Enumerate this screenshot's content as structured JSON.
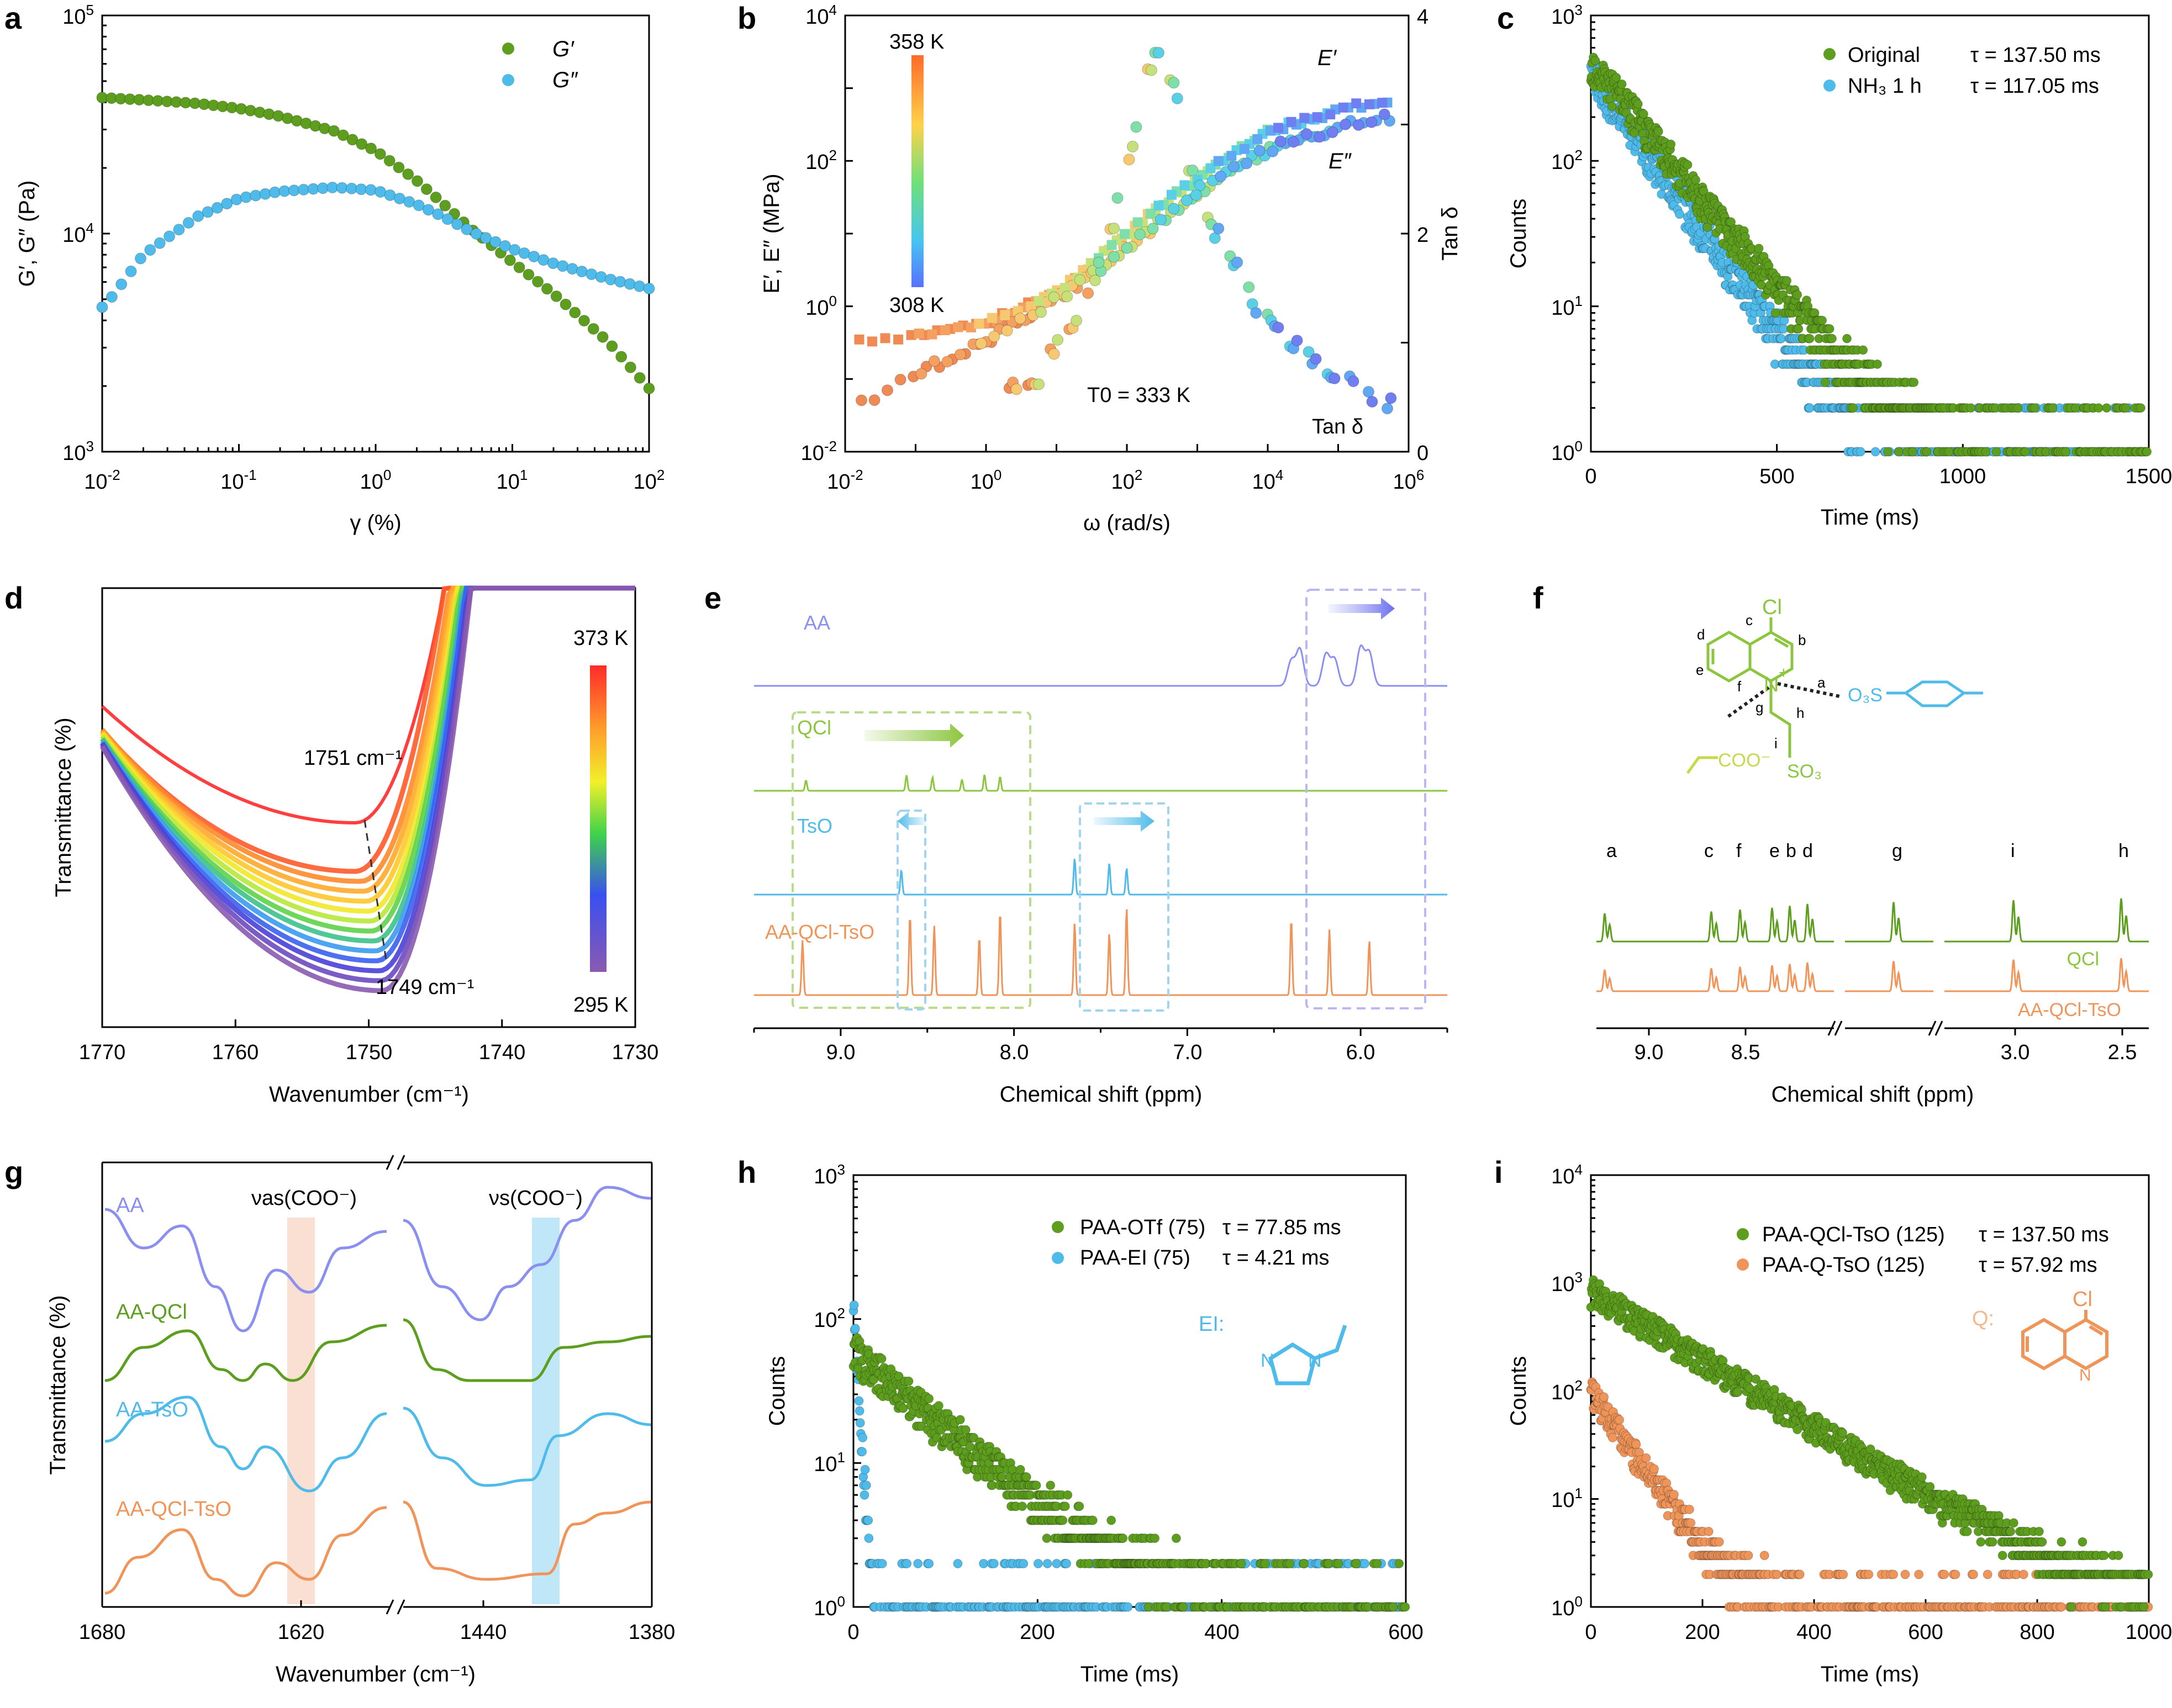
{
  "figure": {
    "panel_labels": [
      "a",
      "b",
      "c",
      "d",
      "e",
      "f",
      "g",
      "h",
      "i"
    ],
    "colors": {
      "green": "#5e9e1e",
      "blue": "#4fbbea",
      "orange": "#f0955a",
      "lav": "#8a8ff0",
      "lightgreen": "#8cc63f",
      "pink": "#f6c9b6",
      "sky": "#a9dff5"
    }
  },
  "chart_data": [
    {
      "panel": "a",
      "type": "scatter",
      "xscale": "log",
      "yscale": "log",
      "xlim": [
        0.01,
        100
      ],
      "ylim": [
        1000,
        100000
      ],
      "xticks": [
        "10^-2",
        "10^-1",
        "10^0",
        "10^1",
        "10^2"
      ],
      "yticks": [
        "10^3",
        "10^4",
        "10^5"
      ],
      "xlabel": "γ (%)",
      "ylabel": "G′, G″ (Pa)",
      "series": [
        {
          "name": "G′",
          "color": "#5e9e1e",
          "x": [
            0.01,
            0.02,
            0.05,
            0.1,
            0.2,
            0.5,
            1,
            2,
            3,
            5,
            10,
            20,
            50,
            100
          ],
          "y": [
            42000,
            41000,
            39500,
            37500,
            34500,
            29500,
            24000,
            17500,
            14000,
            10500,
            7400,
            5300,
            3200,
            1950
          ]
        },
        {
          "name": "G″",
          "color": "#4fbbea",
          "x": [
            0.01,
            0.012,
            0.02,
            0.05,
            0.1,
            0.2,
            0.5,
            1,
            2,
            3,
            5,
            10,
            20,
            50,
            100
          ],
          "y": [
            4600,
            5200,
            8000,
            12000,
            14500,
            15600,
            16300,
            15800,
            13600,
            12100,
            10200,
            8500,
            7300,
            6200,
            5600
          ]
        }
      ]
    },
    {
      "panel": "b",
      "type": "scatter",
      "xscale": "log",
      "yscale": "log",
      "xlim": [
        0.01,
        1000000
      ],
      "ylim": [
        0.01,
        10000
      ],
      "y2lim": [
        0,
        4
      ],
      "xticks": [
        "10^-2",
        "10^0",
        "10^2",
        "10^4",
        "10^6"
      ],
      "yticks": [
        "10^-2",
        "10^0",
        "10^2",
        "10^4"
      ],
      "y2ticks": [
        "0",
        "2",
        "4"
      ],
      "xlabel": "ω (rad/s)",
      "ylabel": "E′, E″ (MPa)",
      "y2label": "Tan δ",
      "colorbar": {
        "top": "358 K",
        "bottom": "308 K"
      },
      "annotations": [
        "E′",
        "E″",
        "T0 = 333 K",
        "Tan δ"
      ],
      "series": [
        {
          "name": "E′",
          "x": [
            0.02,
            0.1,
            1,
            10,
            100,
            1000,
            10000,
            100000,
            500000
          ],
          "y": [
            0.35,
            0.4,
            0.6,
            1.5,
            10,
            60,
            250,
            500,
            700
          ]
        },
        {
          "name": "E″",
          "x": [
            0.02,
            0.1,
            1,
            10,
            100,
            1000,
            10000,
            100000,
            500000
          ],
          "y": [
            0.05,
            0.12,
            0.35,
            1.3,
            7,
            40,
            150,
            300,
            400
          ]
        },
        {
          "name": "Tan δ",
          "axis": "right",
          "x": [
            5,
            30,
            100,
            200,
            300,
            500,
            1000,
            2000,
            5000,
            10000,
            50000,
            200000,
            500000
          ],
          "y": [
            0.6,
            1.5,
            2.5,
            3.5,
            3.8,
            3.2,
            2.3,
            2.0,
            1.5,
            1.2,
            0.8,
            0.6,
            0.45
          ]
        }
      ]
    },
    {
      "panel": "c",
      "type": "scatter",
      "yscale": "log",
      "xlim": [
        0,
        1500
      ],
      "ylim": [
        1,
        1000
      ],
      "xticks": [
        "0",
        "500",
        "1000",
        "1500"
      ],
      "yticks": [
        "10^0",
        "10^1",
        "10^2",
        "10^3"
      ],
      "xlabel": "Time (ms)",
      "ylabel": "Counts",
      "series": [
        {
          "name": "Original",
          "tau": "τ = 137.50 ms",
          "color": "#5e9e1e",
          "peak": 480,
          "tau_ms": 137.5,
          "xmax": 1500
        },
        {
          "name": "NH₃  1 h",
          "tau": "τ = 117.05 ms",
          "color": "#4fbbea",
          "peak": 420,
          "tau_ms": 117.05,
          "xmax": 1500
        }
      ]
    },
    {
      "panel": "d",
      "type": "line",
      "xlim": [
        1770,
        1730
      ],
      "xticks": [
        "1770",
        "1760",
        "1750",
        "1740",
        "1730"
      ],
      "xlabel": "Wavenumber (cm⁻¹)",
      "ylabel": "Transmittance (%)",
      "colorbar": {
        "top": "373 K",
        "bottom": "295 K"
      },
      "annotations": [
        "1751 cm⁻¹",
        "1749 cm⁻¹"
      ],
      "series_min": [
        {
          "T": 373,
          "x": 1751
        },
        {
          "T": 295,
          "x": 1749
        }
      ]
    },
    {
      "panel": "e",
      "type": "line",
      "xlim": [
        9.5,
        5.5
      ],
      "xticks": [
        "9.0",
        "8.0",
        "7.0",
        "6.0"
      ],
      "xlabel": "Chemical shift (ppm)",
      "series": [
        {
          "name": "AA",
          "color": "#8a8ff0",
          "peaks": [
            6.4,
            6.35,
            6.2,
            6.15,
            6.0,
            5.95
          ]
        },
        {
          "name": "QCl",
          "color": "#8cc63f",
          "peaks": [
            9.2,
            8.62,
            8.47,
            8.3,
            8.17,
            8.08
          ]
        },
        {
          "name": "TsO",
          "color": "#4fbbea",
          "peaks": [
            8.65,
            7.65,
            7.45,
            7.35
          ]
        },
        {
          "name": "AA-QCl-TsO",
          "color": "#f0955a",
          "peaks": [
            9.22,
            8.6,
            8.46,
            8.2,
            8.08,
            7.65,
            7.45,
            7.35,
            6.4,
            6.18,
            5.95
          ]
        }
      ]
    },
    {
      "panel": "f",
      "type": "line",
      "xticks": [
        "9.0",
        "8.5",
        "3.0",
        "2.5"
      ],
      "xlabel": "Chemical shift (ppm)",
      "peak_labels": [
        "a",
        "c",
        "f",
        "e",
        "b",
        "d",
        "g",
        "i",
        "h"
      ],
      "atom_labels": [
        "Cl",
        "a",
        "b",
        "c",
        "d",
        "e",
        "f",
        "g",
        "h",
        "i",
        "N"
      ],
      "groups": [
        "COO⁻",
        "O₃S",
        "SO₃"
      ],
      "series": [
        {
          "name": "QCl",
          "color": "#5e9e1e"
        },
        {
          "name": "AA-QCl-TsO",
          "color": "#f0955a"
        }
      ]
    },
    {
      "panel": "g",
      "type": "line",
      "xticks": [
        "1680",
        "1620",
        "1440",
        "1380"
      ],
      "xlabel": "Wavenumber (cm⁻¹)",
      "ylabel": "Transmittance (%)",
      "bands": [
        "νas(COO⁻)",
        "νs(COO⁻)"
      ],
      "series": [
        {
          "name": "AA",
          "color": "#8a8ff0"
        },
        {
          "name": "AA-QCl",
          "color": "#5e9e1e"
        },
        {
          "name": "AA-TsO",
          "color": "#4fbbea"
        },
        {
          "name": "AA-QCl-TsO",
          "color": "#f0955a"
        }
      ]
    },
    {
      "panel": "h",
      "type": "scatter",
      "yscale": "log",
      "xlim": [
        0,
        600
      ],
      "ylim": [
        1,
        1000
      ],
      "xticks": [
        "0",
        "200",
        "400",
        "600"
      ],
      "yticks": [
        "10^0",
        "10^1",
        "10^2",
        "10^3"
      ],
      "xlabel": "Time (ms)",
      "ylabel": "Counts",
      "inset_label": "EI:",
      "series": [
        {
          "name": "PAA-OTf (75)",
          "tau": "τ = 77.85 ms",
          "color": "#5e9e1e",
          "peak": 60,
          "tau_ms": 77.85,
          "xmax": 600
        },
        {
          "name": "PAA-EI (75)",
          "tau": "τ = 4.21 ms",
          "color": "#4fbbea",
          "peak": 120,
          "tau_ms": 4.21,
          "xmax": 600
        }
      ]
    },
    {
      "panel": "i",
      "type": "scatter",
      "yscale": "log",
      "xlim": [
        0,
        1000
      ],
      "ylim": [
        1,
        10000
      ],
      "xticks": [
        "0",
        "200",
        "400",
        "600",
        "800",
        "1000"
      ],
      "yticks": [
        "10^0",
        "10^1",
        "10^2",
        "10^3",
        "10^4"
      ],
      "xlabel": "Time (ms)",
      "ylabel": "Counts",
      "inset_label": "Q:",
      "inset_atom": "Cl",
      "series": [
        {
          "name": "PAA-QCl-TsO (125)",
          "tau": "τ = 137.50 ms",
          "color": "#5e9e1e",
          "peak": 850,
          "tau_ms": 137.5,
          "xmax": 1000
        },
        {
          "name": "PAA-Q-TsO (125)",
          "tau": "τ = 57.92 ms",
          "color": "#f0955a",
          "peak": 100,
          "tau_ms": 57.92,
          "xmax": 1000
        }
      ]
    }
  ]
}
